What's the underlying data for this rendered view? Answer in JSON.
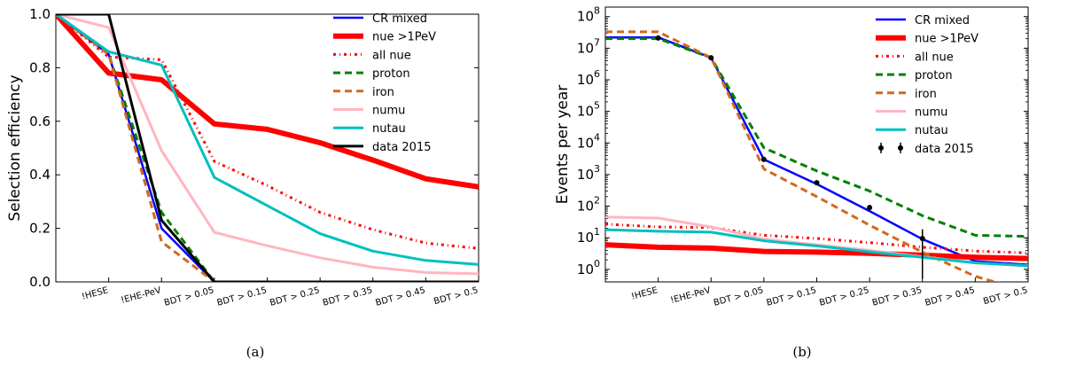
{
  "chart_data": [
    {
      "type": "line",
      "panel_caption": "(a)",
      "xlabel": "",
      "ylabel": "Selection efficiency",
      "yscale": "linear",
      "ylim": [
        0,
        1.0
      ],
      "yticks": [
        0.0,
        0.2,
        0.4,
        0.6,
        0.8,
        1.0
      ],
      "yticklabels": [
        "0.0",
        "0.2",
        "0.4",
        "0.6",
        "0.8",
        "1.0"
      ],
      "categories": [
        "",
        "!HESE",
        "!EHE-PeV",
        "BDT > 0.05",
        "BDT > 0.15",
        "BDT > 0.25",
        "BDT > 0.35",
        "BDT > 0.45",
        "BDT > 0.5"
      ],
      "legend_position": "top-right",
      "series": [
        {
          "name": "CR mixed",
          "color": "#0000ff",
          "style": "solid",
          "width": 2.5,
          "points": [
            [
              0,
              1.0
            ],
            [
              1,
              0.85
            ],
            [
              2,
              0.2
            ],
            [
              3,
              0.0
            ],
            [
              4,
              0.0
            ],
            [
              5,
              0.0
            ],
            [
              6,
              0.0
            ],
            [
              7,
              0.0
            ],
            [
              8,
              0.0
            ]
          ]
        },
        {
          "name": "nue >1PeV",
          "color": "#ff0000",
          "style": "solid",
          "width": 6,
          "points": [
            [
              0,
              1.0
            ],
            [
              1,
              0.78
            ],
            [
              2,
              0.755
            ],
            [
              3,
              0.59
            ],
            [
              4,
              0.57
            ],
            [
              5,
              0.52
            ],
            [
              6,
              0.455
            ],
            [
              7,
              0.385
            ],
            [
              8,
              0.355
            ]
          ]
        },
        {
          "name": "all nue",
          "color": "#ff0000",
          "style": "dashdot",
          "width": 3,
          "points": [
            [
              0,
              1.0
            ],
            [
              1,
              0.84
            ],
            [
              2,
              0.83
            ],
            [
              3,
              0.45
            ],
            [
              4,
              0.36
            ],
            [
              5,
              0.26
            ],
            [
              6,
              0.195
            ],
            [
              7,
              0.145
            ],
            [
              8,
              0.125
            ]
          ]
        },
        {
          "name": "proton",
          "color": "#008000",
          "style": "dashed",
          "width": 3,
          "points": [
            [
              0,
              1.0
            ],
            [
              1,
              0.85
            ],
            [
              2,
              0.26
            ],
            [
              3,
              0.0
            ],
            [
              4,
              0.0
            ],
            [
              5,
              0.0
            ],
            [
              6,
              0.0
            ],
            [
              7,
              0.0
            ],
            [
              8,
              0.0
            ]
          ]
        },
        {
          "name": "iron",
          "color": "#d2691e",
          "style": "dashed",
          "width": 3,
          "points": [
            [
              0,
              1.0
            ],
            [
              1,
              0.85
            ],
            [
              2,
              0.15
            ],
            [
              3,
              0.0
            ],
            [
              4,
              0.0
            ],
            [
              5,
              0.0
            ],
            [
              6,
              0.0
            ],
            [
              7,
              0.0
            ],
            [
              8,
              0.0
            ]
          ]
        },
        {
          "name": "numu",
          "color": "#ffb6c1",
          "style": "solid",
          "width": 3,
          "points": [
            [
              0,
              1.0
            ],
            [
              1,
              0.95
            ],
            [
              2,
              0.49
            ],
            [
              3,
              0.185
            ],
            [
              4,
              0.135
            ],
            [
              5,
              0.09
            ],
            [
              6,
              0.055
            ],
            [
              7,
              0.035
            ],
            [
              8,
              0.03
            ]
          ]
        },
        {
          "name": "nutau",
          "color": "#00bfbf",
          "style": "solid",
          "width": 3,
          "points": [
            [
              0,
              1.0
            ],
            [
              1,
              0.86
            ],
            [
              2,
              0.81
            ],
            [
              3,
              0.39
            ],
            [
              4,
              0.285
            ],
            [
              5,
              0.18
            ],
            [
              6,
              0.115
            ],
            [
              7,
              0.08
            ],
            [
              8,
              0.065
            ]
          ]
        },
        {
          "name": "data 2015",
          "color": "#000000",
          "style": "solid",
          "width": 3,
          "points": [
            [
              0,
              1.0
            ],
            [
              1,
              1.0
            ],
            [
              2,
              0.23
            ],
            [
              3,
              0.0
            ],
            [
              4,
              0.0
            ],
            [
              5,
              0.0
            ],
            [
              6,
              0.0
            ],
            [
              7,
              0.0
            ],
            [
              8,
              0.0
            ]
          ]
        }
      ]
    },
    {
      "type": "line",
      "panel_caption": "(b)",
      "xlabel": "",
      "ylabel": "Events per year",
      "yscale": "log",
      "ylim": [
        0.4,
        200000000
      ],
      "yticks": [
        1,
        10,
        100,
        1000,
        10000,
        100000,
        1000000,
        10000000,
        100000000
      ],
      "yticklabel_exponents": [
        "0",
        "1",
        "2",
        "3",
        "4",
        "5",
        "6",
        "7",
        "8"
      ],
      "categories": [
        "",
        "!HESE",
        "!EHE-PeV",
        "BDT > 0.05",
        "BDT > 0.15",
        "BDT > 0.25",
        "BDT > 0.35",
        "BDT > 0.45",
        "BDT > 0.5"
      ],
      "legend_position": "top-right",
      "series": [
        {
          "name": "CR mixed",
          "color": "#0000ff",
          "style": "solid",
          "width": 2.5,
          "points": [
            [
              0,
              22000000
            ],
            [
              1,
              22000000
            ],
            [
              2,
              5000000
            ],
            [
              3,
              3000
            ],
            [
              4,
              500
            ],
            [
              5,
              70
            ],
            [
              6,
              9
            ],
            [
              7,
              1.8
            ],
            [
              8,
              1.4
            ]
          ]
        },
        {
          "name": "nue >1PeV",
          "color": "#ff0000",
          "style": "solid",
          "width": 6,
          "points": [
            [
              0,
              6
            ],
            [
              1,
              5
            ],
            [
              2,
              4.7
            ],
            [
              3,
              3.7
            ],
            [
              4,
              3.5
            ],
            [
              5,
              3.2
            ],
            [
              6,
              2.8
            ],
            [
              7,
              2.4
            ],
            [
              8,
              2.2
            ]
          ]
        },
        {
          "name": "all nue",
          "color": "#ff0000",
          "style": "dashdot",
          "width": 3,
          "points": [
            [
              0,
              27
            ],
            [
              1,
              22
            ],
            [
              2,
              21
            ],
            [
              3,
              12
            ],
            [
              4,
              9.5
            ],
            [
              5,
              7
            ],
            [
              6,
              5
            ],
            [
              7,
              3.8
            ],
            [
              8,
              3.3
            ]
          ]
        },
        {
          "name": "proton",
          "color": "#008000",
          "style": "dashed",
          "width": 3,
          "points": [
            [
              0,
              20000000
            ],
            [
              1,
              20000000
            ],
            [
              2,
              5000000
            ],
            [
              3,
              7000
            ],
            [
              4,
              1300
            ],
            [
              5,
              300
            ],
            [
              6,
              50
            ],
            [
              7,
              12
            ],
            [
              8,
              11
            ]
          ]
        },
        {
          "name": "iron",
          "color": "#d2691e",
          "style": "dashed",
          "width": 3,
          "points": [
            [
              0,
              33000000
            ],
            [
              1,
              33000000
            ],
            [
              2,
              5000000
            ],
            [
              3,
              1500
            ],
            [
              4,
              200
            ],
            [
              5,
              25
            ],
            [
              6,
              3.5
            ],
            [
              7,
              0.6
            ],
            [
              8,
              0.2
            ]
          ]
        },
        {
          "name": "numu",
          "color": "#ffb6c1",
          "style": "solid",
          "width": 3,
          "points": [
            [
              0,
              45
            ],
            [
              1,
              42
            ],
            [
              2,
              22
            ],
            [
              3,
              9
            ],
            [
              4,
              6
            ],
            [
              5,
              4
            ],
            [
              6,
              2.5
            ],
            [
              7,
              1.6
            ],
            [
              8,
              1.3
            ]
          ]
        },
        {
          "name": "nutau",
          "color": "#00bfbf",
          "style": "solid",
          "width": 3,
          "points": [
            [
              0,
              18
            ],
            [
              1,
              16
            ],
            [
              2,
              15
            ],
            [
              3,
              8
            ],
            [
              4,
              5.5
            ],
            [
              5,
              3.6
            ],
            [
              6,
              2.4
            ],
            [
              7,
              1.6
            ],
            [
              8,
              1.3
            ]
          ]
        }
      ],
      "errorbar_series": {
        "name": "data 2015",
        "color": "#000000",
        "points": [
          [
            1,
            21000000,
            0
          ],
          [
            2,
            5000000,
            0
          ],
          [
            3,
            3000,
            0
          ],
          [
            4,
            550,
            0
          ],
          [
            5,
            90,
            20
          ],
          [
            6,
            9.5,
            9
          ]
        ]
      }
    }
  ]
}
